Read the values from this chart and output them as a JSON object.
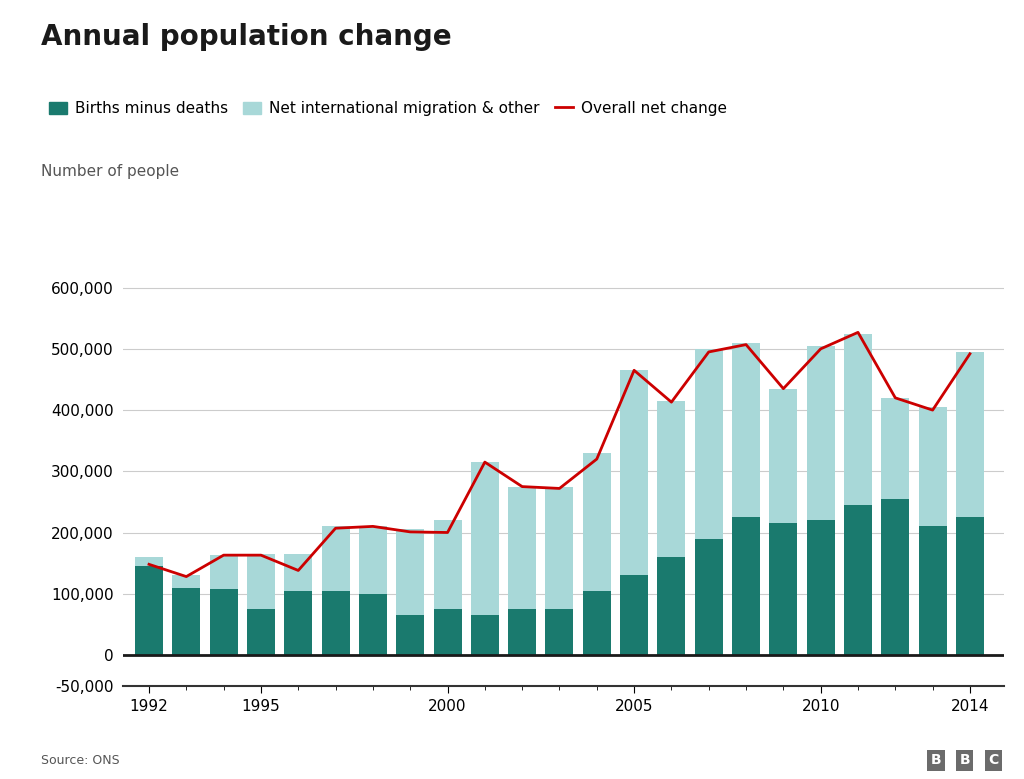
{
  "title": "Annual population change",
  "ylabel_text": "Number of people",
  "source": "Source: ONS",
  "years": [
    1992,
    1993,
    1994,
    1995,
    1996,
    1997,
    1998,
    1999,
    2000,
    2001,
    2002,
    2003,
    2004,
    2005,
    2006,
    2007,
    2008,
    2009,
    2010,
    2011,
    2012,
    2013,
    2014
  ],
  "births_minus_deaths": [
    160000,
    110000,
    108000,
    75000,
    105000,
    105000,
    100000,
    65000,
    75000,
    65000,
    75000,
    75000,
    105000,
    130000,
    160000,
    190000,
    225000,
    215000,
    220000,
    245000,
    255000,
    210000,
    225000
  ],
  "net_migration": [
    -15000,
    20000,
    55000,
    90000,
    60000,
    105000,
    110000,
    140000,
    145000,
    250000,
    200000,
    200000,
    225000,
    335000,
    255000,
    310000,
    285000,
    220000,
    285000,
    280000,
    165000,
    195000,
    270000
  ],
  "overall_net_change": [
    148000,
    128000,
    163000,
    163000,
    138000,
    207000,
    210000,
    201000,
    200000,
    315000,
    275000,
    272000,
    320000,
    465000,
    413000,
    495000,
    507000,
    435000,
    500000,
    527000,
    420000,
    400000,
    492000
  ],
  "bar_color_births": "#1a7a6e",
  "bar_color_migration": "#a8d8d8",
  "line_color": "#cc0000",
  "background_color": "#ffffff",
  "ylim": [
    -50000,
    650000
  ],
  "yticks": [
    -50000,
    0,
    100000,
    200000,
    300000,
    400000,
    500000,
    600000
  ],
  "ytick_labels": [
    "-50,000",
    "0",
    "100,000",
    "200,000",
    "300,000",
    "400,000",
    "500,000",
    "600,000"
  ],
  "legend_labels": [
    "Births minus deaths",
    "Net international migration & other",
    "Overall net change"
  ],
  "title_fontsize": 20,
  "axis_fontsize": 11,
  "legend_fontsize": 11
}
